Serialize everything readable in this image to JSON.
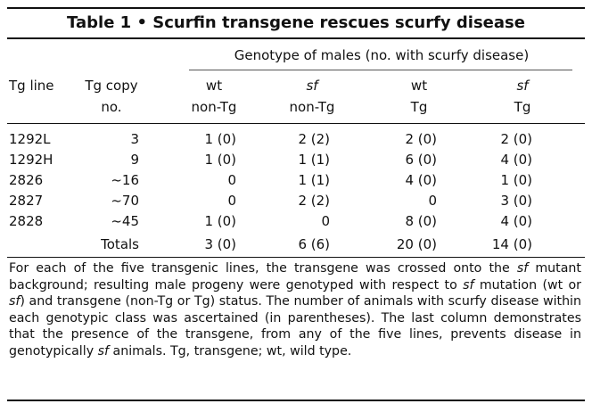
{
  "title": "Table 1 •  Scurfin transgene rescues scurfy disease",
  "genotype_header": "Genotype of males (no. with scurfy disease)",
  "columns": {
    "tg_line": "Tg line",
    "tg_copy_1": "Tg copy",
    "tg_copy_2": "no.",
    "wt_non_1": "wt",
    "wt_non_2": "non-Tg",
    "sf_non_1": "sf",
    "sf_non_2": "non-Tg",
    "wt_tg_1": "wt",
    "wt_tg_2": "Tg",
    "sf_tg_1": "sf",
    "sf_tg_2": "Tg"
  },
  "rows": [
    {
      "line": "1292L",
      "copy": "3",
      "wt_non": "1 (0)",
      "sf_non": "2 (2)",
      "wt_tg": "2 (0)",
      "sf_tg": "2 (0)"
    },
    {
      "line": "1292H",
      "copy": "9",
      "wt_non": "1 (0)",
      "sf_non": "1 (1)",
      "wt_tg": "6 (0)",
      "sf_tg": "4 (0)"
    },
    {
      "line": "2826",
      "copy": "~16",
      "wt_non": "0",
      "sf_non": "1 (1)",
      "wt_tg": "4 (0)",
      "sf_tg": "1 (0)"
    },
    {
      "line": "2827",
      "copy": "~70",
      "wt_non": "0",
      "sf_non": "2 (2)",
      "wt_tg": "0",
      "sf_tg": "3 (0)"
    },
    {
      "line": "2828",
      "copy": "~45",
      "wt_non": "1 (0)",
      "sf_non": "0",
      "wt_tg": "8 (0)",
      "sf_tg": "4 (0)"
    }
  ],
  "totals": {
    "label": "Totals",
    "wt_non": "3 (0)",
    "sf_non": "6 (6)",
    "wt_tg": "20 (0)",
    "sf_tg": "14 (0)"
  },
  "footnote": {
    "p1": "For each of the five transgenic lines, the transgene was crossed onto the ",
    "i1": "sf",
    "p2": " mutant background; resulting male progeny were genotyped with respect to ",
    "i2": "sf",
    "p3": " mutation (wt or ",
    "i3": "sf",
    "p4": ") and transgene (non-Tg or Tg) status. The number of animals with scurfy disease within each genotypic class was ascertained (in parentheses). The last column demonstrates that the presence of the transgene, from any of the five lines, prevents disease in genotypically ",
    "i4": "sf",
    "p5": " animals. Tg, transgene; wt, wild type."
  }
}
